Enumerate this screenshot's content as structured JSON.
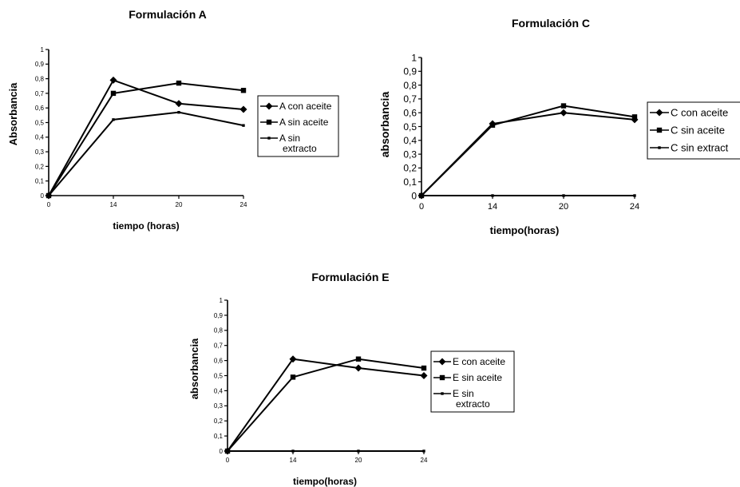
{
  "chart_data": [
    {
      "type": "line",
      "title": "Formulación A",
      "xlabel": "tiempo (horas)",
      "ylabel": "Absorbancia",
      "x": [
        0,
        14,
        20,
        24
      ],
      "x_tick_labels": [
        "0",
        "14",
        "20",
        "24"
      ],
      "ylim": [
        0,
        1
      ],
      "y_tick_labels": [
        "0",
        "0,1",
        "0,2",
        "0,3",
        "0,4",
        "0,5",
        "0,6",
        "0,7",
        "0,8",
        "0,9",
        "1"
      ],
      "grid": false,
      "legend_position": "right",
      "series": [
        {
          "name": "A con aceite",
          "marker": "diamond",
          "values": [
            0,
            0.79,
            0.63,
            0.59
          ]
        },
        {
          "name": "A sin aceite",
          "marker": "square",
          "values": [
            0,
            0.7,
            0.77,
            0.72
          ]
        },
        {
          "name": "A sin extracto",
          "name_lines": [
            "A sin",
            "extracto"
          ],
          "marker": "small",
          "values": [
            0,
            0.52,
            0.57,
            0.48
          ]
        }
      ]
    },
    {
      "type": "line",
      "title": "Formulación C",
      "xlabel": "tiempo(horas)",
      "ylabel": "absorbancia",
      "x": [
        0,
        14,
        20,
        24
      ],
      "x_tick_labels": [
        "0",
        "14",
        "20",
        "24"
      ],
      "ylim": [
        0,
        1
      ],
      "y_tick_labels": [
        "0",
        "0,1",
        "0,2",
        "0,3",
        "0,4",
        "0,5",
        "0,6",
        "0,7",
        "0,8",
        "0,9",
        "1"
      ],
      "grid": false,
      "legend_position": "right",
      "series": [
        {
          "name": "C con aceite",
          "marker": "diamond",
          "values": [
            0,
            0.52,
            0.6,
            0.55
          ]
        },
        {
          "name": "C sin aceite",
          "marker": "square",
          "values": [
            0,
            0.51,
            0.65,
            0.57
          ]
        },
        {
          "name": "C sin extract",
          "marker": "small",
          "values": [
            0,
            0,
            0,
            0
          ]
        }
      ]
    },
    {
      "type": "line",
      "title": "Formulación E",
      "xlabel": "tiempo(horas)",
      "ylabel": "absorbancia",
      "x": [
        0,
        14,
        20,
        24
      ],
      "x_tick_labels": [
        "0",
        "14",
        "20",
        "24"
      ],
      "ylim": [
        0,
        1
      ],
      "y_tick_labels": [
        "0",
        "0,1",
        "0,2",
        "0,3",
        "0,4",
        "0,5",
        "0,6",
        "0,7",
        "0,8",
        "0,9",
        "1"
      ],
      "grid": false,
      "legend_position": "right",
      "series": [
        {
          "name": "E con aceite",
          "marker": "diamond",
          "values": [
            0,
            0.61,
            0.55,
            0.5
          ]
        },
        {
          "name": "E sin aceite",
          "marker": "square",
          "values": [
            0,
            0.49,
            0.61,
            0.55
          ]
        },
        {
          "name": "E sin extracto",
          "name_lines": [
            "E sin",
            "extracto"
          ],
          "marker": "small",
          "values": [
            0,
            0,
            0,
            0
          ]
        }
      ]
    }
  ]
}
